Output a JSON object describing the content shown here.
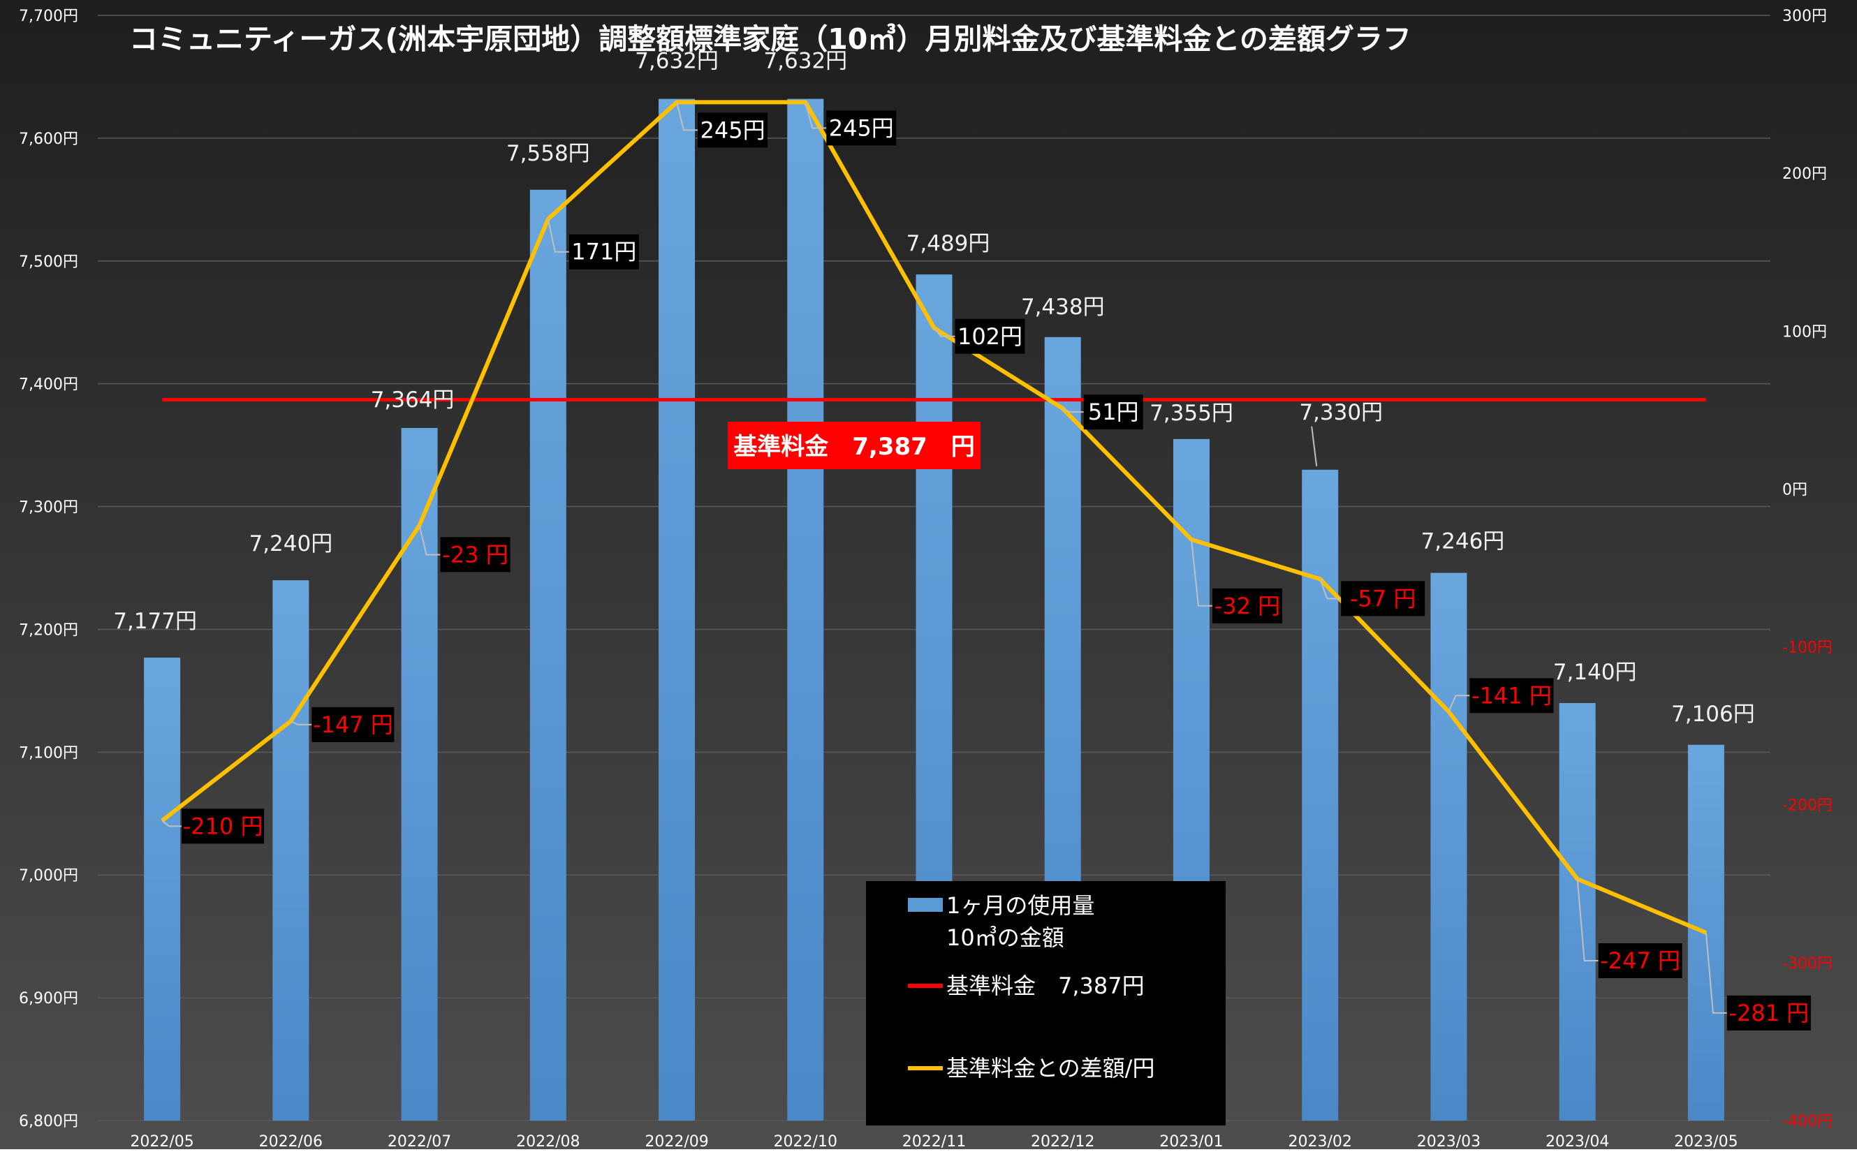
{
  "chart_data": {
    "type": "bar+line",
    "title": "コミュニティーガス(洲本宇原団地）調整額標準家庭（10㎥）月別料金及び基準料金との差額グラフ",
    "categories": [
      "2022/05",
      "2022/06",
      "2022/07",
      "2022/08",
      "2022/09",
      "2022/10",
      "2022/11",
      "2022/12",
      "2023/01",
      "2023/02",
      "2023/03",
      "2023/04",
      "2023/05"
    ],
    "series": [
      {
        "name": "1ヶ月の使用量\n10㎥の金額",
        "type": "bar",
        "axis": "left",
        "values": [
          7177,
          7240,
          7364,
          7558,
          7632,
          7632,
          7489,
          7438,
          7355,
          7330,
          7246,
          7140,
          7106
        ],
        "labels": [
          "7,177円",
          "7,240円",
          "7,364円",
          "7,558円",
          "7,632円",
          "7,632円",
          "7,489円",
          "7,438円",
          "7,355円",
          "7,330円",
          "7,246円",
          "7,140円",
          "7,106円"
        ],
        "color": "#5b9bd5"
      },
      {
        "name": "基準料金との差額/円",
        "type": "line",
        "axis": "right",
        "values": [
          -210,
          -147,
          -23,
          171,
          245,
          245,
          102,
          51,
          -32,
          -57,
          -141,
          -247,
          -281
        ],
        "labels": [
          "-210 円",
          "-147 円",
          "-23 円",
          "171円",
          "245円",
          "245円",
          "102円",
          "51円",
          "-32 円",
          "-57 円",
          "-141 円",
          "-247 円",
          "-281 円"
        ],
        "color": "#ffc000"
      },
      {
        "name": "基準料金　7,387円",
        "type": "reference_line",
        "axis": "left",
        "value": 7387,
        "color": "#ff0000"
      }
    ],
    "reference_label": "基準料金　7,387　円",
    "y_left": {
      "min": 6800,
      "max": 7700,
      "step": 100,
      "ticks": [
        "6,800円",
        "6,900円",
        "7,000円",
        "7,100円",
        "7,200円",
        "7,300円",
        "7,400円",
        "7,500円",
        "7,600円",
        "7,700円"
      ]
    },
    "y_right": {
      "min": -400,
      "max": 300,
      "step": 100,
      "ticks": [
        "-400円",
        "-300円",
        "-200円",
        "-100円",
        "0円",
        "100円",
        "200円",
        "300円"
      ],
      "negative_color": "#ff0000"
    },
    "grid": true,
    "legend_position": "bottom-center",
    "colors": {
      "bar": "#5b9bd5",
      "line": "#ffc000",
      "reference": "#ff0000",
      "negative_text": "#ff0000",
      "background_top": "#202020",
      "background_bottom": "#4a4a4a"
    }
  }
}
